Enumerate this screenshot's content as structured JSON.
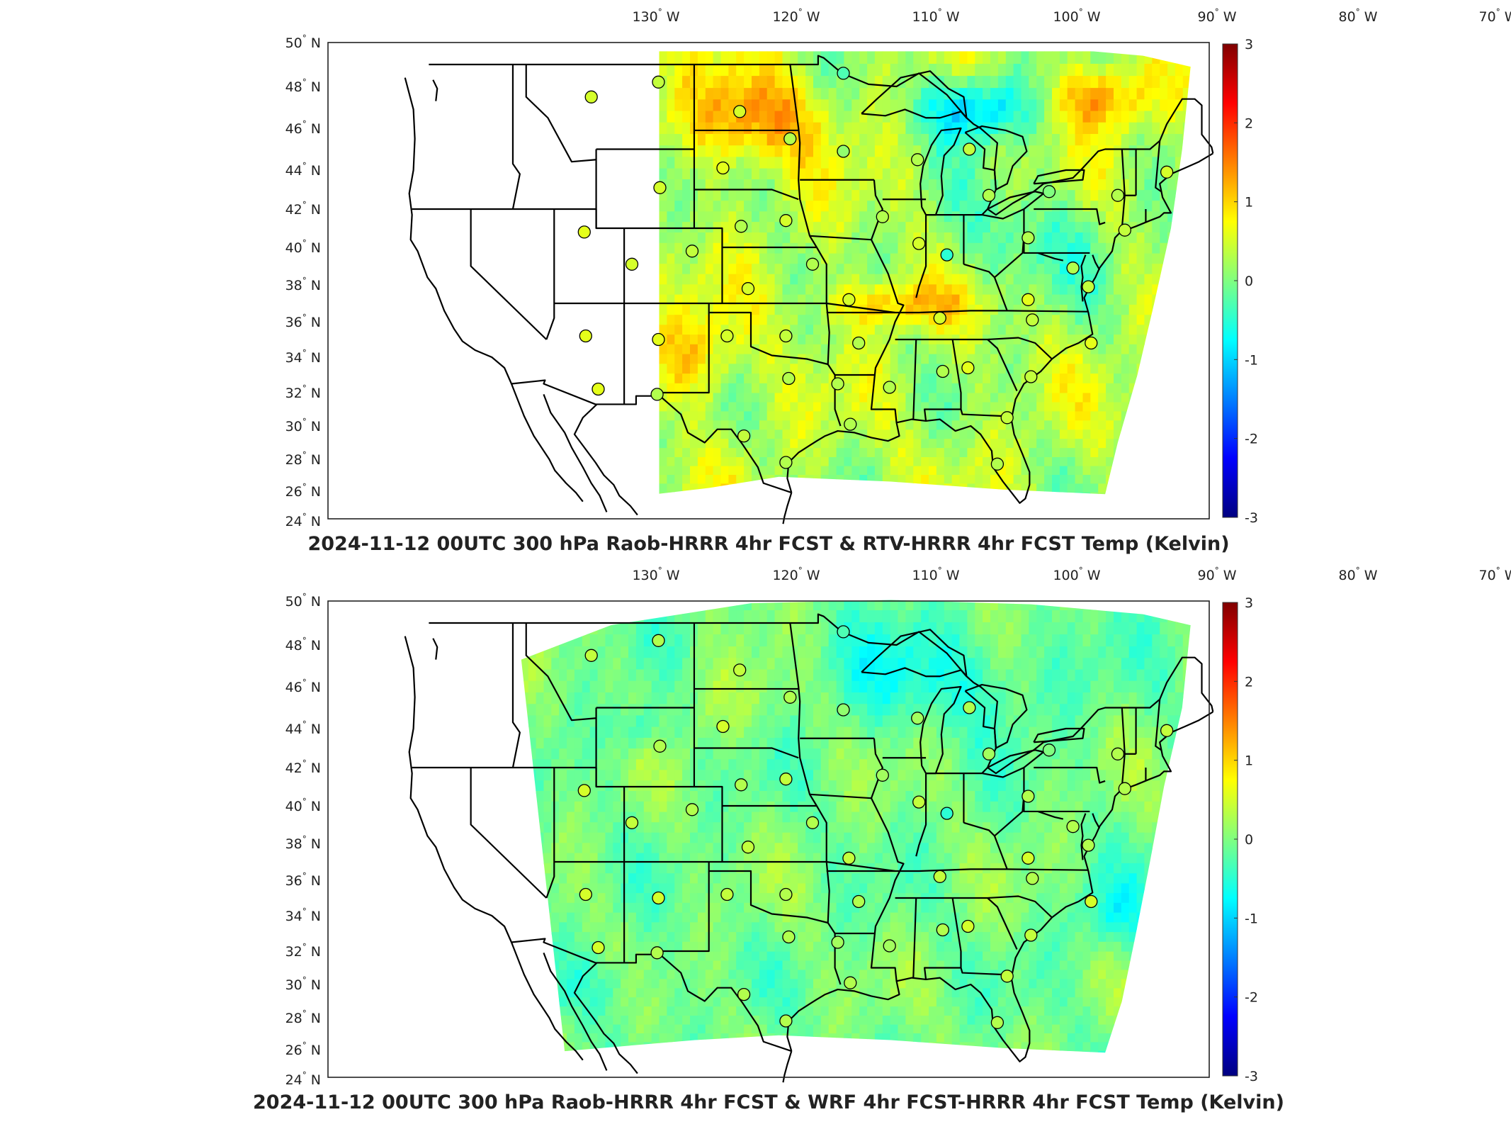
{
  "chart_data": [
    {
      "type": "heatmap",
      "title": "2024-11-12 00UTC 300 hPa Raob-HRRR 4hr FCST & RTV-HRRR 4hr FCST Temp (Kelvin)",
      "x_ticks": [
        "130 W",
        "120 W",
        "110 W",
        "100 W",
        "90 W",
        "80 W",
        "70 W"
      ],
      "y_ticks": [
        "50 N",
        "48 N",
        "46 N",
        "44 N",
        "42 N",
        "40 N",
        "38 N",
        "36 N",
        "34 N",
        "32 N",
        "30 N",
        "28 N",
        "26 N",
        "24 N"
      ],
      "colorbar": {
        "ticks": [
          "3",
          "2",
          "1",
          "0",
          "-1",
          "-2",
          "-3"
        ],
        "min": -3,
        "max": 3,
        "colormap": "jet"
      },
      "field_bias": 0.25
    },
    {
      "type": "heatmap",
      "title": "2024-11-12 00UTC 300 hPa Raob-HRRR 4hr FCST & WRF 4hr FCST-HRRR 4hr FCST Temp (Kelvin)",
      "x_ticks": [
        "130 W",
        "120 W",
        "110 W",
        "100 W",
        "90 W",
        "80 W",
        "70 W"
      ],
      "y_ticks": [
        "50 N",
        "48 N",
        "46 N",
        "44 N",
        "42 N",
        "40 N",
        "38 N",
        "36 N",
        "34 N",
        "32 N",
        "30 N",
        "28 N",
        "26 N",
        "24 N"
      ],
      "colorbar": {
        "ticks": [
          "3",
          "2",
          "1",
          "0",
          "-1",
          "-2",
          "-3"
        ],
        "min": -3,
        "max": 3,
        "colormap": "jet"
      },
      "field_bias": 0.0
    }
  ],
  "stations": [
    {
      "lon": -111.4,
      "lat": 47.5,
      "v1": 0.5,
      "v2": 0.4
    },
    {
      "lon": -106.6,
      "lat": 48.2,
      "v1": 0.4,
      "v2": 0.3
    },
    {
      "lon": -93.4,
      "lat": 48.6,
      "v1": -0.3,
      "v2": -0.3
    },
    {
      "lon": -100.8,
      "lat": 46.8,
      "v1": 0.5,
      "v2": 0.4
    },
    {
      "lon": -97.2,
      "lat": 45.5,
      "v1": 0.3,
      "v2": 0.3
    },
    {
      "lon": -93.4,
      "lat": 44.9,
      "v1": 0.1,
      "v2": 0.1
    },
    {
      "lon": -88.1,
      "lat": 44.5,
      "v1": 0.3,
      "v2": 0.2
    },
    {
      "lon": -84.4,
      "lat": 45.0,
      "v1": 0.4,
      "v2": 0.3
    },
    {
      "lon": -102.0,
      "lat": 44.1,
      "v1": 0.6,
      "v2": 0.5
    },
    {
      "lon": -106.5,
      "lat": 43.1,
      "v1": 0.5,
      "v2": 0.3
    },
    {
      "lon": -100.7,
      "lat": 41.1,
      "v1": 0.3,
      "v2": 0.3
    },
    {
      "lon": -97.5,
      "lat": 41.4,
      "v1": 0.5,
      "v2": 0.4
    },
    {
      "lon": -90.6,
      "lat": 41.6,
      "v1": 0.3,
      "v2": 0.2
    },
    {
      "lon": -83.0,
      "lat": 42.7,
      "v1": 0.3,
      "v2": 0.2
    },
    {
      "lon": -78.7,
      "lat": 42.9,
      "v1": 0.0,
      "v2": 0.0
    },
    {
      "lon": -73.8,
      "lat": 42.7,
      "v1": 0.3,
      "v2": 0.3
    },
    {
      "lon": -70.3,
      "lat": 43.9,
      "v1": 0.5,
      "v2": 0.4
    },
    {
      "lon": -73.3,
      "lat": 40.9,
      "v1": 0.4,
      "v2": 0.3
    },
    {
      "lon": -111.9,
      "lat": 40.8,
      "v1": 0.6,
      "v2": 0.5
    },
    {
      "lon": -108.5,
      "lat": 39.1,
      "v1": 0.5,
      "v2": 0.4
    },
    {
      "lon": -104.2,
      "lat": 39.8,
      "v1": 0.4,
      "v2": 0.3
    },
    {
      "lon": -95.6,
      "lat": 39.1,
      "v1": 0.3,
      "v2": 0.3
    },
    {
      "lon": -88.0,
      "lat": 40.2,
      "v1": 0.5,
      "v2": 0.4
    },
    {
      "lon": -86.0,
      "lat": 39.6,
      "v1": -0.5,
      "v2": -0.5
    },
    {
      "lon": -80.2,
      "lat": 40.5,
      "v1": 0.3,
      "v2": 0.3
    },
    {
      "lon": -77.0,
      "lat": 38.9,
      "v1": 0.3,
      "v2": 0.3
    },
    {
      "lon": -75.9,
      "lat": 37.9,
      "v1": 0.4,
      "v2": 0.3
    },
    {
      "lon": -100.2,
      "lat": 37.8,
      "v1": 0.5,
      "v2": 0.4
    },
    {
      "lon": -93.0,
      "lat": 37.2,
      "v1": 0.5,
      "v2": 0.4
    },
    {
      "lon": -86.5,
      "lat": 36.2,
      "v1": 0.5,
      "v2": 0.4
    },
    {
      "lon": -80.2,
      "lat": 37.2,
      "v1": 0.6,
      "v2": 0.5
    },
    {
      "lon": -79.9,
      "lat": 36.1,
      "v1": 0.4,
      "v2": 0.3
    },
    {
      "lon": -111.8,
      "lat": 35.2,
      "v1": 0.6,
      "v2": 0.5
    },
    {
      "lon": -106.6,
      "lat": 35.0,
      "v1": 0.6,
      "v2": 0.5
    },
    {
      "lon": -101.7,
      "lat": 35.2,
      "v1": 0.5,
      "v2": 0.4
    },
    {
      "lon": -97.5,
      "lat": 35.2,
      "v1": 0.4,
      "v2": 0.3
    },
    {
      "lon": -92.3,
      "lat": 34.8,
      "v1": 0.3,
      "v2": 0.3
    },
    {
      "lon": -75.7,
      "lat": 34.8,
      "v1": 0.6,
      "v2": 0.5
    },
    {
      "lon": -97.3,
      "lat": 32.8,
      "v1": 0.3,
      "v2": 0.3
    },
    {
      "lon": -93.8,
      "lat": 32.5,
      "v1": 0.3,
      "v2": 0.2
    },
    {
      "lon": -90.1,
      "lat": 32.3,
      "v1": 0.3,
      "v2": 0.2
    },
    {
      "lon": -86.3,
      "lat": 33.2,
      "v1": 0.3,
      "v2": 0.3
    },
    {
      "lon": -84.5,
      "lat": 33.4,
      "v1": 0.6,
      "v2": 0.5
    },
    {
      "lon": -80.0,
      "lat": 32.9,
      "v1": 0.4,
      "v2": 0.4
    },
    {
      "lon": -110.9,
      "lat": 32.2,
      "v1": 0.6,
      "v2": 0.5
    },
    {
      "lon": -106.7,
      "lat": 31.9,
      "v1": 0.3,
      "v2": 0.3
    },
    {
      "lon": -100.5,
      "lat": 29.4,
      "v1": 0.4,
      "v2": 0.3
    },
    {
      "lon": -92.9,
      "lat": 30.1,
      "v1": 0.3,
      "v2": 0.3
    },
    {
      "lon": -81.7,
      "lat": 30.5,
      "v1": 0.4,
      "v2": 0.4
    },
    {
      "lon": -97.5,
      "lat": 27.8,
      "v1": 0.3,
      "v2": 0.3
    },
    {
      "lon": -82.4,
      "lat": 27.7,
      "v1": 0.3,
      "v2": 0.3
    }
  ]
}
